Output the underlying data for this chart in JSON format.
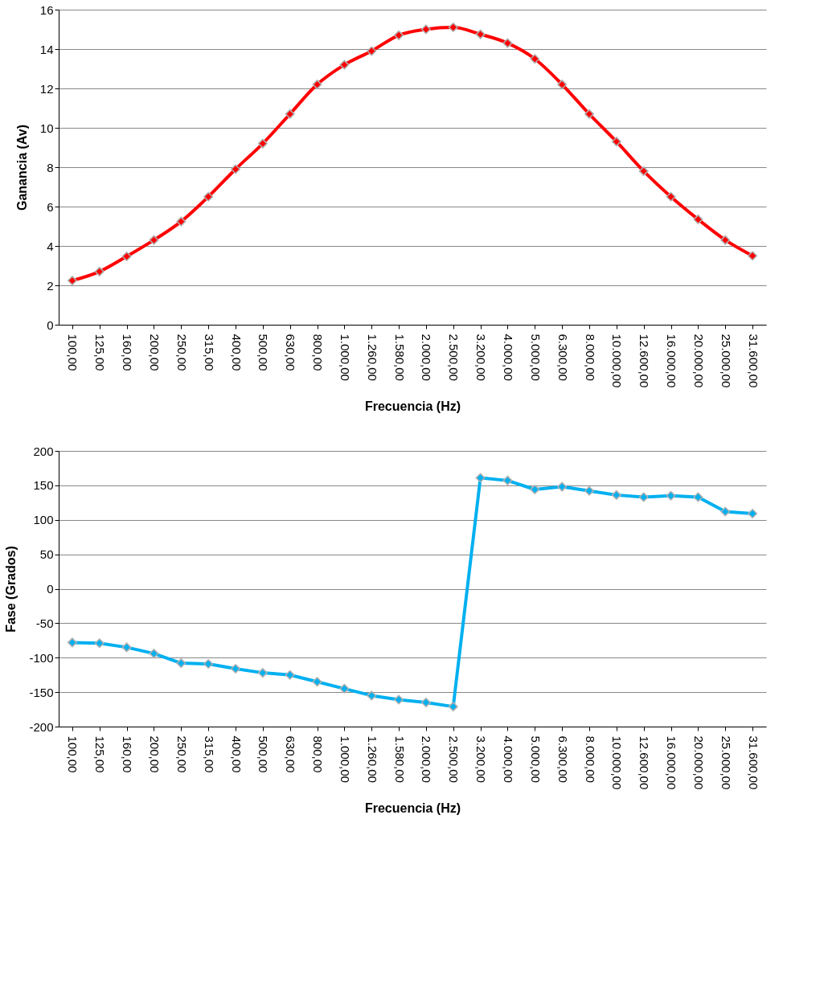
{
  "chart_data": [
    {
      "type": "line",
      "xlabel": "Frecuencia (Hz)",
      "ylabel": "Ganancia (Av)",
      "categories": [
        "100,00",
        "125,00",
        "160,00",
        "200,00",
        "250,00",
        "315,00",
        "400,00",
        "500,00",
        "630,00",
        "800,00",
        "1.000,00",
        "1.260,00",
        "1.580,00",
        "2.000,00",
        "2.500,00",
        "3.200,00",
        "4.000,00",
        "5.000,00",
        "6.300,00",
        "8.000,00",
        "10.000,00",
        "12.600,00",
        "16.000,00",
        "20.000,00",
        "25.000,00",
        "31.600,00"
      ],
      "series": [
        {
          "color": "#ff0000",
          "values": [
            2.24,
            2.7,
            3.47,
            4.3,
            5.24,
            6.5,
            7.9,
            9.2,
            10.7,
            12.2,
            13.2,
            13.9,
            14.7,
            15.0,
            15.1,
            14.75,
            14.3,
            13.5,
            12.2,
            10.7,
            9.3,
            7.8,
            6.5,
            5.35,
            4.3,
            3.5
          ]
        }
      ],
      "ylim": [
        0,
        16
      ],
      "yticks": [
        0,
        2,
        4,
        6,
        8,
        10,
        12,
        14,
        16
      ],
      "grid": "y",
      "marker": "diamond",
      "line_style": "solid"
    },
    {
      "type": "line",
      "xlabel": "Frecuencia (Hz)",
      "ylabel": "Fase (Grados)",
      "categories": [
        "100,00",
        "125,00",
        "160,00",
        "200,00",
        "250,00",
        "315,00",
        "400,00",
        "500,00",
        "630,00",
        "800,00",
        "1.000,00",
        "1.260,00",
        "1.580,00",
        "2.000,00",
        "2.500,00",
        "3.200,00",
        "4.000,00",
        "5.000,00",
        "6.300,00",
        "8.000,00",
        "10.000,00",
        "12.600,00",
        "16.000,00",
        "20.000,00",
        "25.000,00",
        "31.600,00"
      ],
      "series": [
        {
          "color": "#00b0f0",
          "values": [
            -78,
            -79,
            -85,
            -94,
            -108,
            -109,
            -116,
            -122,
            -125,
            -135,
            -145,
            -155,
            -161,
            -165,
            -171,
            161,
            157,
            144,
            148,
            142,
            136,
            133,
            135,
            133,
            112,
            109
          ]
        }
      ],
      "ylim": [
        -200,
        200
      ],
      "yticks": [
        -200,
        -150,
        -100,
        -50,
        0,
        50,
        100,
        150,
        200
      ],
      "grid": "y",
      "marker": "diamond",
      "line_style": "solid"
    }
  ]
}
